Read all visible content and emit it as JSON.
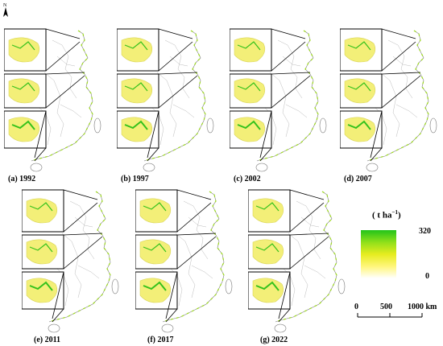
{
  "north_label": "N",
  "panels": [
    {
      "label": "(a) 1992"
    },
    {
      "label": "(b) 1997"
    },
    {
      "label": "(c) 2002"
    },
    {
      "label": "(d) 2007"
    },
    {
      "label": "(e) 2011"
    },
    {
      "label": "(f) 2017"
    },
    {
      "label": "(g) 2022"
    }
  ],
  "legend": {
    "title_main": "( t ha",
    "title_sup": "−1",
    "title_end": ")",
    "max": "320",
    "min": "0",
    "colors": [
      "#22c41a",
      "#e6ec1f",
      "#ffffff"
    ]
  },
  "scale": {
    "s0": "0",
    "s1": "500",
    "s2": "1000 km"
  }
}
